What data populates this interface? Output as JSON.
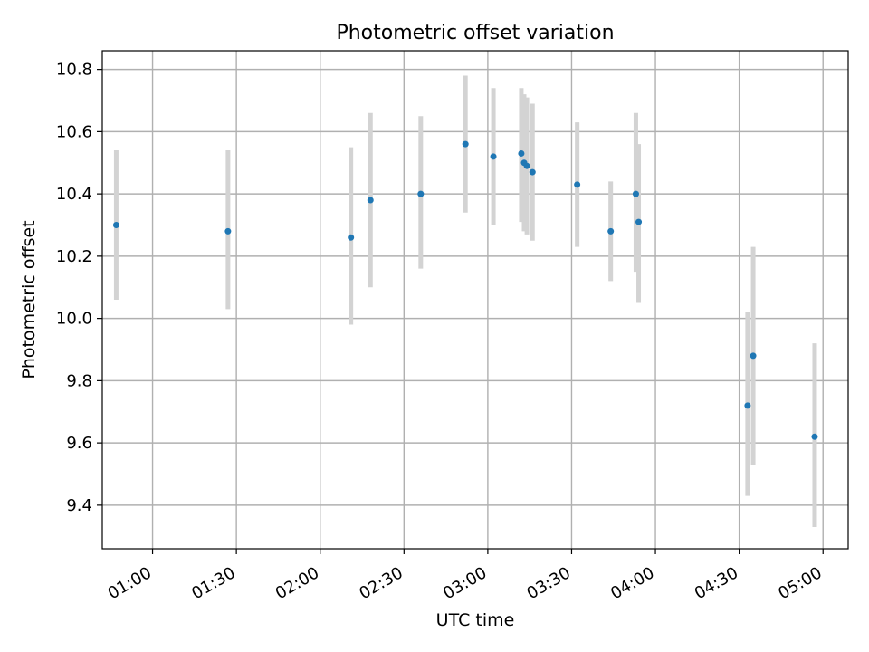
{
  "chart_data": {
    "type": "scatter",
    "title": "Photometric offset variation",
    "xlabel": "UTC time",
    "ylabel": "Photometric offset",
    "x_tick_labels": [
      "01:00",
      "01:30",
      "02:00",
      "02:30",
      "03:00",
      "03:30",
      "04:00",
      "04:30",
      "05:00"
    ],
    "y_tick_labels": [
      "9.4",
      "9.6",
      "9.8",
      "10.0",
      "10.2",
      "10.4",
      "10.6",
      "10.8"
    ],
    "xlim": [
      "00:42",
      "05:09"
    ],
    "ylim": [
      9.26,
      10.86
    ],
    "grid": true,
    "colors": {
      "points": "#1f77b4",
      "error_bars": "#d3d3d3",
      "grid": "#b0b0b0"
    },
    "points": [
      {
        "x": "00:47",
        "y": 10.3,
        "y_low": 10.06,
        "y_high": 10.54
      },
      {
        "x": "01:27",
        "y": 10.28,
        "y_low": 10.03,
        "y_high": 10.54
      },
      {
        "x": "02:11",
        "y": 10.26,
        "y_low": 9.98,
        "y_high": 10.55
      },
      {
        "x": "02:18",
        "y": 10.38,
        "y_low": 10.1,
        "y_high": 10.66
      },
      {
        "x": "02:36",
        "y": 10.4,
        "y_low": 10.16,
        "y_high": 10.65
      },
      {
        "x": "02:52",
        "y": 10.56,
        "y_low": 10.34,
        "y_high": 10.78
      },
      {
        "x": "03:02",
        "y": 10.52,
        "y_low": 10.3,
        "y_high": 10.74
      },
      {
        "x": "03:12",
        "y": 10.53,
        "y_low": 10.31,
        "y_high": 10.74
      },
      {
        "x": "03:13",
        "y": 10.5,
        "y_low": 10.28,
        "y_high": 10.72
      },
      {
        "x": "03:14",
        "y": 10.49,
        "y_low": 10.27,
        "y_high": 10.71
      },
      {
        "x": "03:16",
        "y": 10.47,
        "y_low": 10.25,
        "y_high": 10.69
      },
      {
        "x": "03:32",
        "y": 10.43,
        "y_low": 10.23,
        "y_high": 10.63
      },
      {
        "x": "03:44",
        "y": 10.28,
        "y_low": 10.12,
        "y_high": 10.44
      },
      {
        "x": "03:53",
        "y": 10.4,
        "y_low": 10.15,
        "y_high": 10.66
      },
      {
        "x": "03:54",
        "y": 10.31,
        "y_low": 10.05,
        "y_high": 10.56
      },
      {
        "x": "04:33",
        "y": 9.72,
        "y_low": 9.43,
        "y_high": 10.02
      },
      {
        "x": "04:35",
        "y": 9.88,
        "y_low": 9.53,
        "y_high": 10.23
      },
      {
        "x": "04:57",
        "y": 9.62,
        "y_low": 9.33,
        "y_high": 9.92
      }
    ]
  }
}
